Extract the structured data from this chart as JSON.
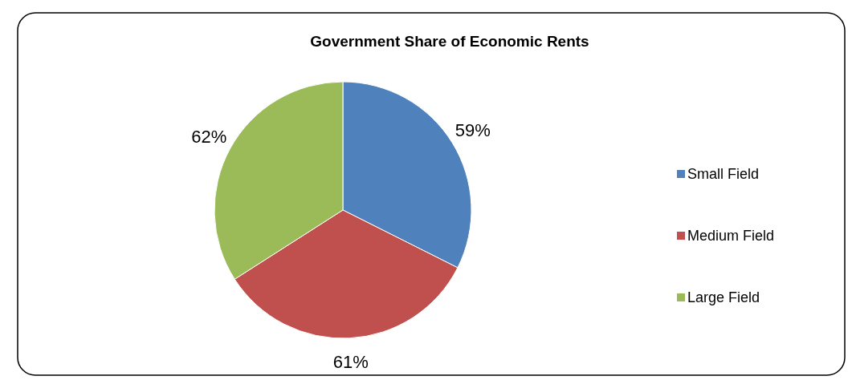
{
  "chart_data": {
    "type": "pie",
    "title": "Government Share of Economic Rents",
    "categories": [
      "Small Field",
      "Medium Field",
      "Large Field"
    ],
    "values": [
      59,
      61,
      62
    ],
    "colors": [
      "#4f81bd",
      "#c0504d",
      "#9bbb59"
    ],
    "value_labels": [
      "59%",
      "61%",
      "62%"
    ],
    "legend": "right"
  }
}
